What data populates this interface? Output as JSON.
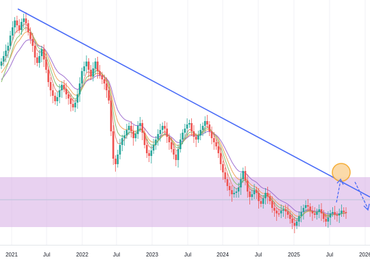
{
  "chart_data": {
    "type": "candlestick",
    "x_tick_labels": [
      "2021",
      "Jul",
      "2022",
      "Jul",
      "2023",
      "Jul",
      "2024",
      "Jul",
      "2025",
      "Jul",
      "2026"
    ],
    "x_range": [
      "2020-11",
      "2026-01"
    ],
    "y_axis": "not shown",
    "grid": "faint vertical lines",
    "legend": "none",
    "candles": {
      "up_color": "#26a69a",
      "down_color": "#ef5350",
      "closes": [
        78,
        70,
        62,
        55,
        40,
        28,
        18,
        25,
        32,
        20,
        15,
        22,
        35,
        45,
        55,
        72,
        80,
        70,
        60,
        75,
        90,
        108,
        120,
        128,
        136,
        130,
        120,
        112,
        118,
        126,
        132,
        140,
        145,
        138,
        126,
        110,
        92,
        85,
        78,
        90,
        100,
        88,
        78,
        92,
        98,
        104,
        110,
        120,
        135,
        180,
        220,
        228,
        214,
        200,
        190,
        186,
        178,
        172,
        180,
        190,
        184,
        172,
        168,
        182,
        200,
        212,
        216,
        208,
        200,
        192,
        184,
        178,
        172,
        176,
        188,
        196,
        206,
        214,
        222,
        206,
        192,
        182,
        176,
        170,
        168,
        180,
        188,
        192,
        186,
        178,
        172,
        165,
        170,
        180,
        190,
        196,
        202,
        212,
        228,
        240,
        250,
        260,
        266,
        272,
        270,
        268,
        262,
        250,
        238,
        252,
        268,
        276,
        272,
        266,
        270,
        282,
        286,
        278,
        270,
        275,
        282,
        292,
        296,
        300,
        300,
        296,
        294,
        297,
        302,
        308,
        314,
        318,
        312,
        304,
        298,
        292,
        288,
        290,
        296,
        300,
        302,
        298,
        294,
        300,
        308,
        312,
        306,
        300,
        298,
        302,
        303,
        300,
        296,
        298,
        299
      ]
    },
    "moving_averages": [
      {
        "color": "#e58a7a",
        "smoothing": 0.35
      },
      {
        "color": "#f0a45a",
        "smoothing": 0.18
      },
      {
        "color": "#a070d0",
        "smoothing": 0.12
      },
      {
        "color": "#8ac070",
        "smoothing": 0.25
      }
    ],
    "annotations": {
      "trendline": {
        "color": "#4a6cf7",
        "description": "descending resistance line from the 2021 high"
      },
      "support_zone": {
        "color": "#d9b3e6",
        "description": "shaded horizontal range at the bottom"
      },
      "circle_marker": {
        "color": "#f5a623",
        "description": "touch point on the trendline"
      },
      "arrows": {
        "color": "#4a6cf7",
        "paths": [
          "up to trendline",
          "down after rejection"
        ]
      }
    }
  }
}
